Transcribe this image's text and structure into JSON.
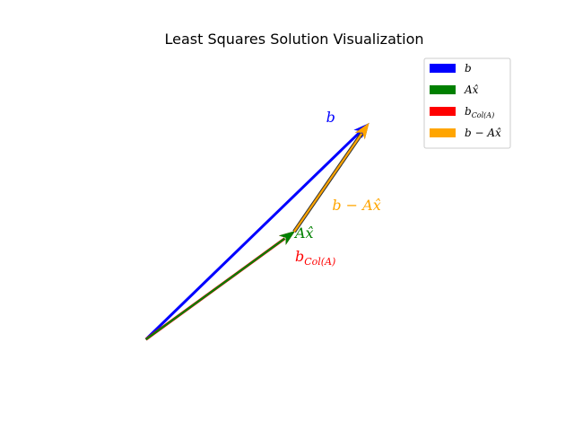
{
  "chart_data": {
    "type": "vector",
    "title": "Least Squares Solution Visualization",
    "xlabel": "",
    "ylabel": "",
    "grid": false,
    "axes_visible": false,
    "xlim": [
      -1.0,
      5.0
    ],
    "ylim": [
      -1.0,
      4.0
    ],
    "legend_position": "top-right",
    "vectors": [
      {
        "key": "b",
        "color": "#0000ff",
        "label_main": "b",
        "label_sub": "",
        "start": [
          0.0,
          0.0
        ],
        "end": [
          3.0,
          3.0
        ]
      },
      {
        "key": "A_xhat",
        "color": "#008000",
        "label_main": "Ax̂",
        "label_sub": "",
        "start": [
          0.0,
          0.0
        ],
        "end": [
          2.0,
          1.5
        ]
      },
      {
        "key": "b_colA",
        "color": "#ff0000",
        "label_main": "b",
        "label_sub": "Col(A)",
        "start": [
          0.0,
          0.0
        ],
        "end": [
          2.0,
          1.5
        ]
      },
      {
        "key": "residual",
        "color": "#ffa500",
        "label_main": "b − Ax̂",
        "label_sub": "",
        "start": [
          2.0,
          1.5
        ],
        "end": [
          3.0,
          3.0
        ]
      }
    ]
  }
}
